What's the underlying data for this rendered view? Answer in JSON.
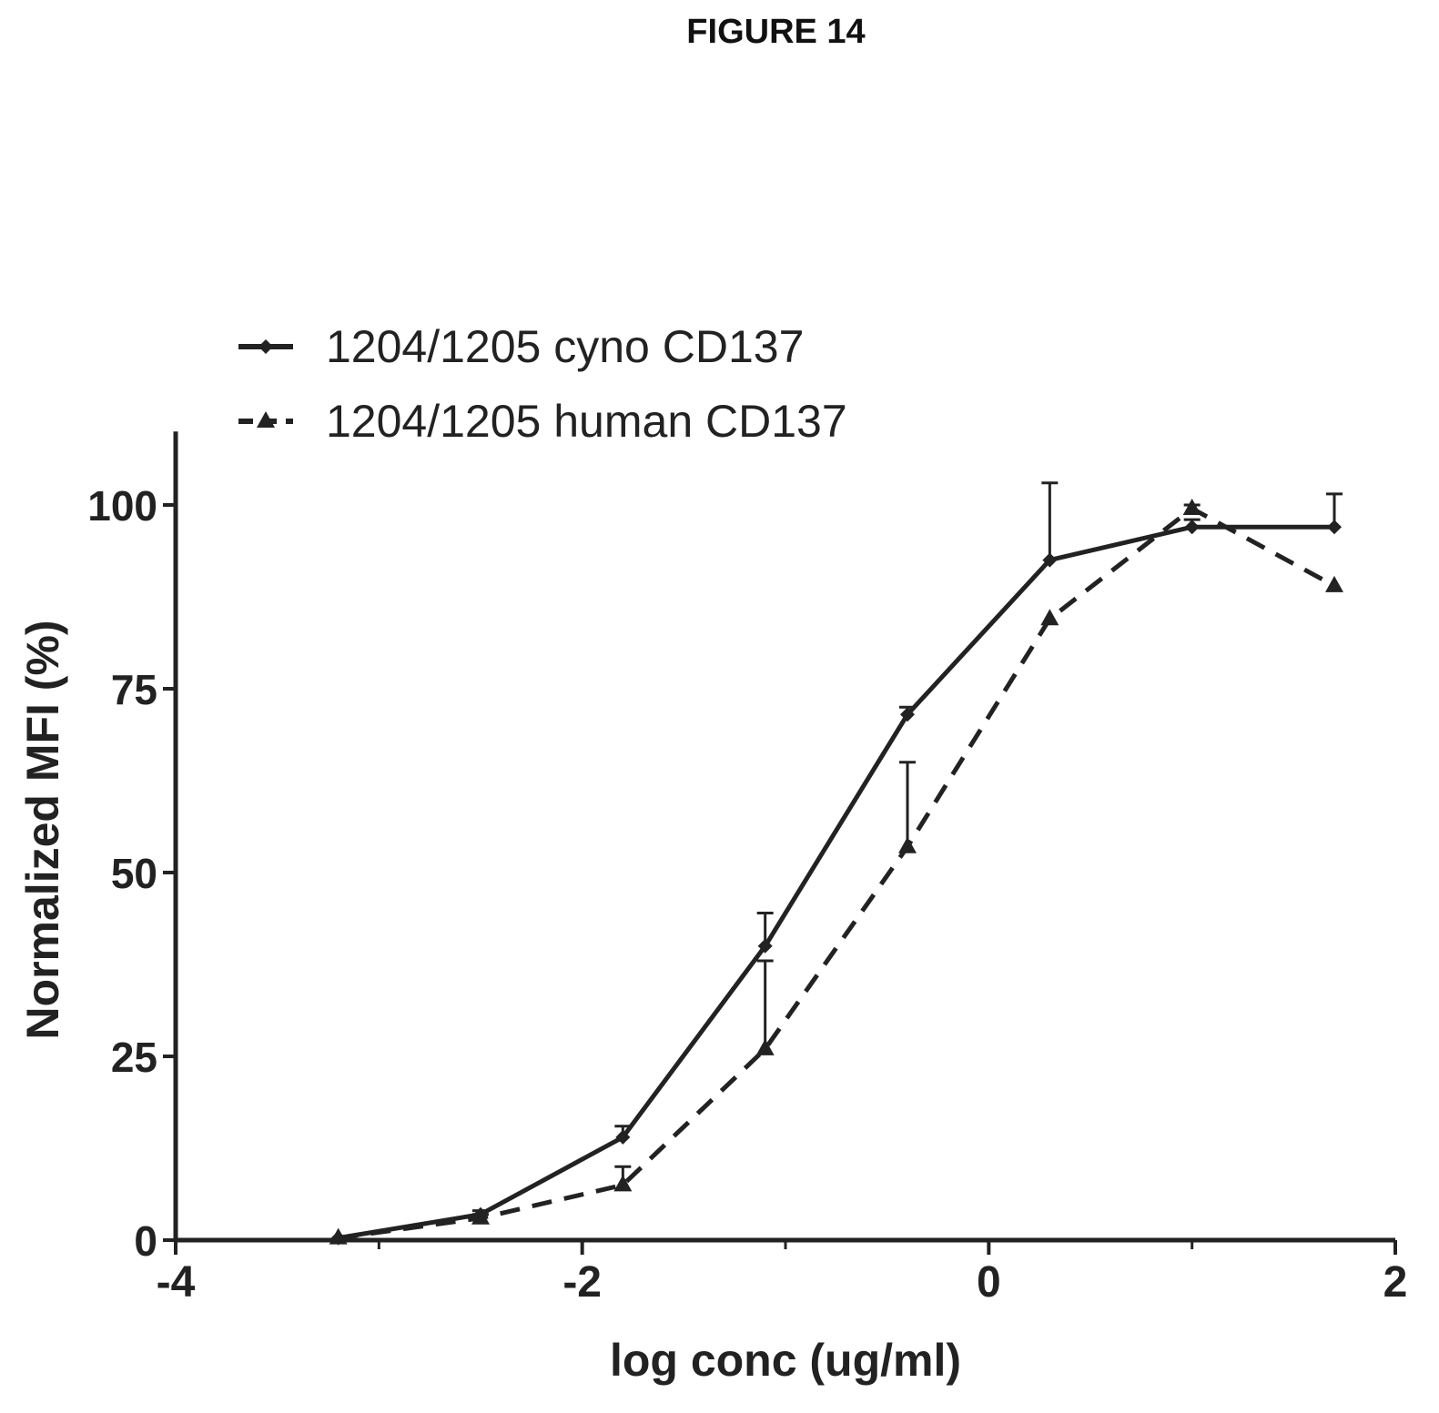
{
  "figure_title": "FIGURE 14",
  "chart_data": {
    "type": "line",
    "title": "",
    "xlabel": "log conc (ug/ml)",
    "ylabel": "Normalized MFI (%)",
    "xlim": [
      -4,
      2
    ],
    "ylim": [
      0,
      110
    ],
    "xticks": [
      -4,
      -2,
      0,
      2
    ],
    "xtick_labels": [
      "-4",
      "-2",
      "0",
      "2"
    ],
    "yticks": [
      0,
      25,
      50,
      75,
      100
    ],
    "ytick_labels": [
      "0",
      "25",
      "50",
      "75",
      "100"
    ],
    "legend_position": "top-left",
    "series": [
      {
        "name": "1204/1205 cyno CD137",
        "line_style": "solid",
        "marker": "diamond",
        "x": [
          -3.2,
          -2.5,
          -1.8,
          -1.1,
          -0.4,
          0.3,
          1.0,
          1.7
        ],
        "y": [
          0.3,
          3.5,
          14,
          40,
          71.5,
          92.5,
          97,
          97
        ],
        "err": [
          0,
          0.5,
          1.5,
          4.5,
          1,
          10.5,
          1,
          4.5
        ]
      },
      {
        "name": "1204/1205 human CD137",
        "line_style": "dashed",
        "marker": "triangle",
        "x": [
          -3.2,
          -2.5,
          -1.8,
          -1.1,
          -0.4,
          0.3,
          1.0,
          1.7
        ],
        "y": [
          0.3,
          3,
          7.5,
          26,
          53.5,
          84.5,
          99.5,
          89
        ],
        "err": [
          0,
          0.5,
          2.5,
          12,
          11.5,
          0,
          0.5,
          0
        ]
      }
    ]
  }
}
